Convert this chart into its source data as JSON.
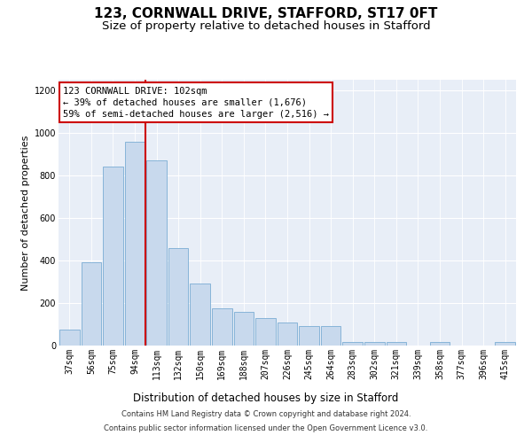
{
  "title": "123, CORNWALL DRIVE, STAFFORD, ST17 0FT",
  "subtitle": "Size of property relative to detached houses in Stafford",
  "xlabel": "Distribution of detached houses by size in Stafford",
  "ylabel": "Number of detached properties",
  "categories": [
    "37sqm",
    "56sqm",
    "75sqm",
    "94sqm",
    "113sqm",
    "132sqm",
    "150sqm",
    "169sqm",
    "188sqm",
    "207sqm",
    "226sqm",
    "245sqm",
    "264sqm",
    "283sqm",
    "302sqm",
    "321sqm",
    "339sqm",
    "358sqm",
    "377sqm",
    "396sqm",
    "415sqm"
  ],
  "values": [
    75,
    390,
    840,
    960,
    870,
    460,
    290,
    175,
    160,
    130,
    110,
    90,
    90,
    15,
    15,
    15,
    0,
    15,
    0,
    0,
    15
  ],
  "bar_color": "#c8d9ed",
  "bar_edge_color": "#7aadd4",
  "vline_color": "#cc0000",
  "vline_pos": 3.5,
  "annotation_text": "123 CORNWALL DRIVE: 102sqm\n← 39% of detached houses are smaller (1,676)\n59% of semi-detached houses are larger (2,516) →",
  "annotation_box_color": "#ffffff",
  "annotation_box_edge": "#cc0000",
  "ylim": [
    0,
    1250
  ],
  "yticks": [
    0,
    200,
    400,
    600,
    800,
    1000,
    1200
  ],
  "background_color": "#e8eef7",
  "footer_line1": "Contains HM Land Registry data © Crown copyright and database right 2024.",
  "footer_line2": "Contains public sector information licensed under the Open Government Licence v3.0.",
  "title_fontsize": 11,
  "subtitle_fontsize": 9.5,
  "xlabel_fontsize": 8.5,
  "ylabel_fontsize": 8,
  "tick_fontsize": 7,
  "annotation_fontsize": 7.5,
  "footer_fontsize": 6.0
}
